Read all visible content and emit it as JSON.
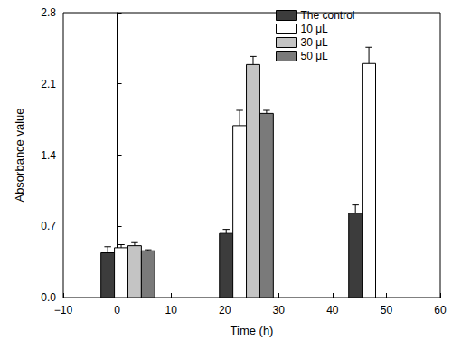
{
  "chart_data": {
    "type": "bar",
    "x_label": "Time (h)",
    "y_label": "Absorbance value",
    "x": [
      2,
      24,
      48
    ],
    "series": [
      {
        "name": "The control",
        "color": "#3c3c3c",
        "values": [
          0.44,
          0.63,
          0.83
        ],
        "errors": [
          0.06,
          0.04,
          0.08
        ]
      },
      {
        "name": "10 μL",
        "color": "#ffffff",
        "values": [
          0.49,
          1.69,
          2.3
        ],
        "errors": [
          0.03,
          0.15,
          0.16
        ]
      },
      {
        "name": "30 μL",
        "color": "#c4c4c4",
        "values": [
          0.51,
          2.29,
          null
        ],
        "errors": [
          0.03,
          0.08,
          null
        ]
      },
      {
        "name": "50 μL",
        "color": "#7a7a7a",
        "values": [
          0.46,
          1.81,
          null
        ],
        "errors": [
          0.01,
          0.03,
          null
        ]
      }
    ],
    "xlim": [
      -10,
      60
    ],
    "xticks": [
      {
        "value": -10,
        "label": "−10"
      },
      0,
      10,
      20,
      30,
      40,
      50,
      60
    ],
    "ylim": [
      0,
      2.8
    ],
    "yticks": [
      {
        "value": 0,
        "label": "0.0"
      },
      0.7,
      1.4,
      2.1,
      2.8
    ],
    "legend": "upper right",
    "grid": false
  }
}
